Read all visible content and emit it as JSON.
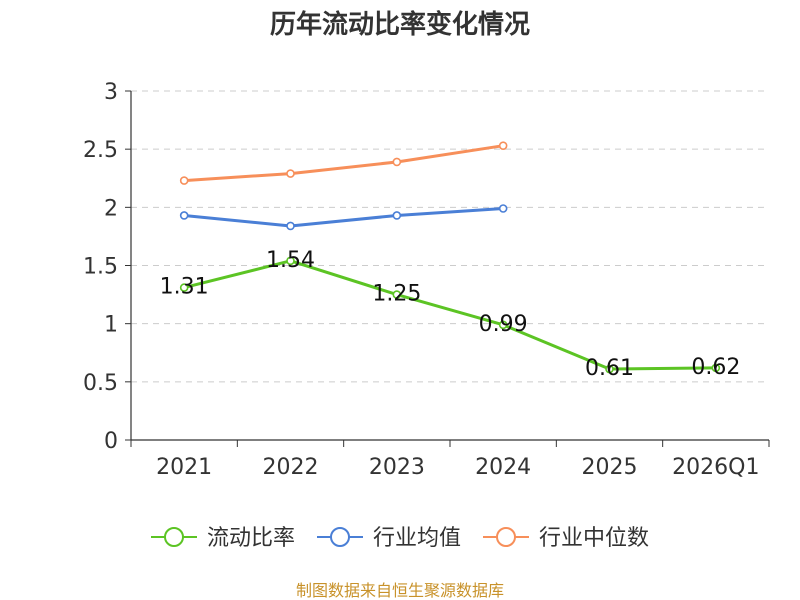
{
  "chart_data": {
    "type": "line",
    "title": "历年流动比率变化情况",
    "categories": [
      "2021",
      "2022",
      "2023",
      "2024",
      "2025",
      "2026Q1"
    ],
    "ylim": [
      0,
      3
    ],
    "yticks": [
      0,
      0.5,
      1,
      1.5,
      2,
      2.5,
      3
    ],
    "ytick_labels": [
      "0",
      "0.5",
      "1",
      "1.5",
      "2",
      "2.5",
      "3"
    ],
    "grid": true,
    "legend_position": "bottom",
    "series": [
      {
        "name": "流动比率",
        "color": "#5cc424",
        "values": [
          1.31,
          1.54,
          1.25,
          0.99,
          0.61,
          0.62
        ],
        "labels": [
          "1.31",
          "1.54",
          "1.25",
          "0.99",
          "0.61",
          "0.62"
        ]
      },
      {
        "name": "行业均值",
        "color": "#4a7fd6",
        "values": [
          1.93,
          1.84,
          1.93,
          1.99,
          null,
          null
        ]
      },
      {
        "name": "行业中位数",
        "color": "#f78f5a",
        "values": [
          2.23,
          2.29,
          2.39,
          2.53,
          null,
          null
        ]
      }
    ],
    "source": "制图数据来自恒生聚源数据库"
  }
}
